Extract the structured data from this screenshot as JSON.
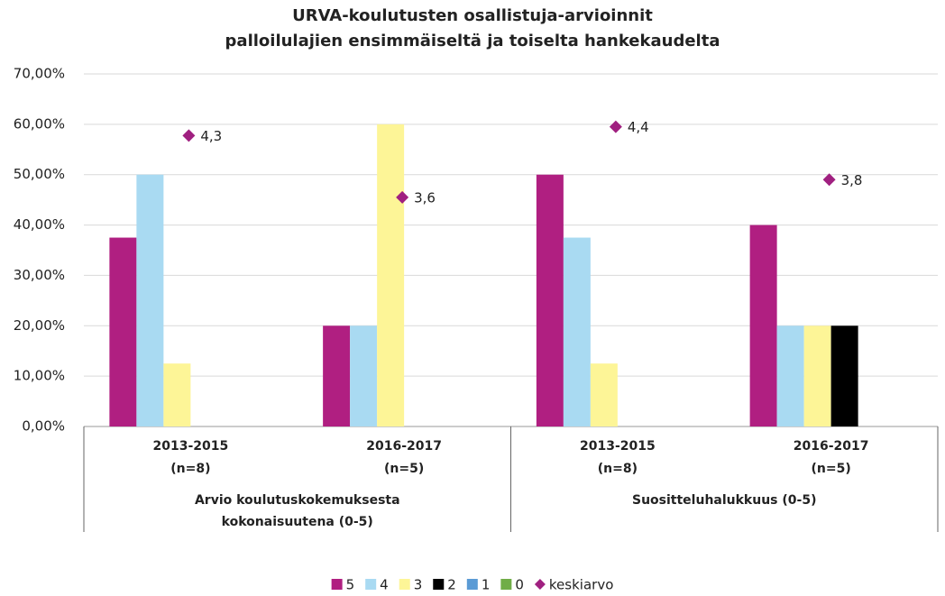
{
  "chart_data": {
    "type": "bar",
    "title": [
      "URVA-koulutusten osallistuja-arvioinnit",
      "palloilulajien ensimmäiseltä ja toiselta hankekaudelta"
    ],
    "categories": [
      [
        "2013-2015",
        "(n=8)"
      ],
      [
        "2016-2017",
        "(n=5)"
      ],
      [
        "2013-2015",
        "(n=8)"
      ],
      [
        "2016-2017",
        "(n=5)"
      ]
    ],
    "group_labels": [
      [
        "Arvio koulutuskokemuksesta",
        "kokonaisuutena (0-5)"
      ],
      [
        "Suositteluhalukkuus (0-5)"
      ]
    ],
    "series": [
      {
        "name": "5",
        "color": "#b01f81",
        "values": [
          37.5,
          20,
          50,
          40
        ]
      },
      {
        "name": "4",
        "color": "#a9daf2",
        "values": [
          50,
          20,
          37.5,
          20
        ]
      },
      {
        "name": "3",
        "color": "#fdf597",
        "values": [
          12.5,
          60,
          12.5,
          20
        ]
      },
      {
        "name": "2",
        "color": "#000000",
        "values": [
          0,
          0,
          0,
          20
        ]
      },
      {
        "name": "1",
        "color": "#5b9bd5",
        "values": [
          0,
          0,
          0,
          0
        ]
      },
      {
        "name": "0",
        "color": "#70ad47",
        "values": [
          0,
          0,
          0,
          0
        ]
      },
      {
        "name": "keskiarvo",
        "color": "#a02080",
        "type": "scatter",
        "axis": "y2",
        "values": [
          4.3,
          3.6,
          4.4,
          3.8
        ],
        "value_labels": [
          "4,3",
          "3,6",
          "4,4",
          "3,8"
        ]
      }
    ],
    "ylim": [
      0,
      70
    ],
    "yticks": [
      {
        "value": 0,
        "label": "0,00%"
      },
      {
        "value": 10,
        "label": "10,00%"
      },
      {
        "value": 20,
        "label": "20,00%"
      },
      {
        "value": 30,
        "label": "30,00%"
      },
      {
        "value": 40,
        "label": "40,00%"
      },
      {
        "value": 50,
        "label": "50,00%"
      },
      {
        "value": 60,
        "label": "60,00%"
      },
      {
        "value": 70,
        "label": "70,00%"
      }
    ],
    "y2lim": [
      1,
      5
    ],
    "grid": true,
    "legend": "bottom"
  }
}
